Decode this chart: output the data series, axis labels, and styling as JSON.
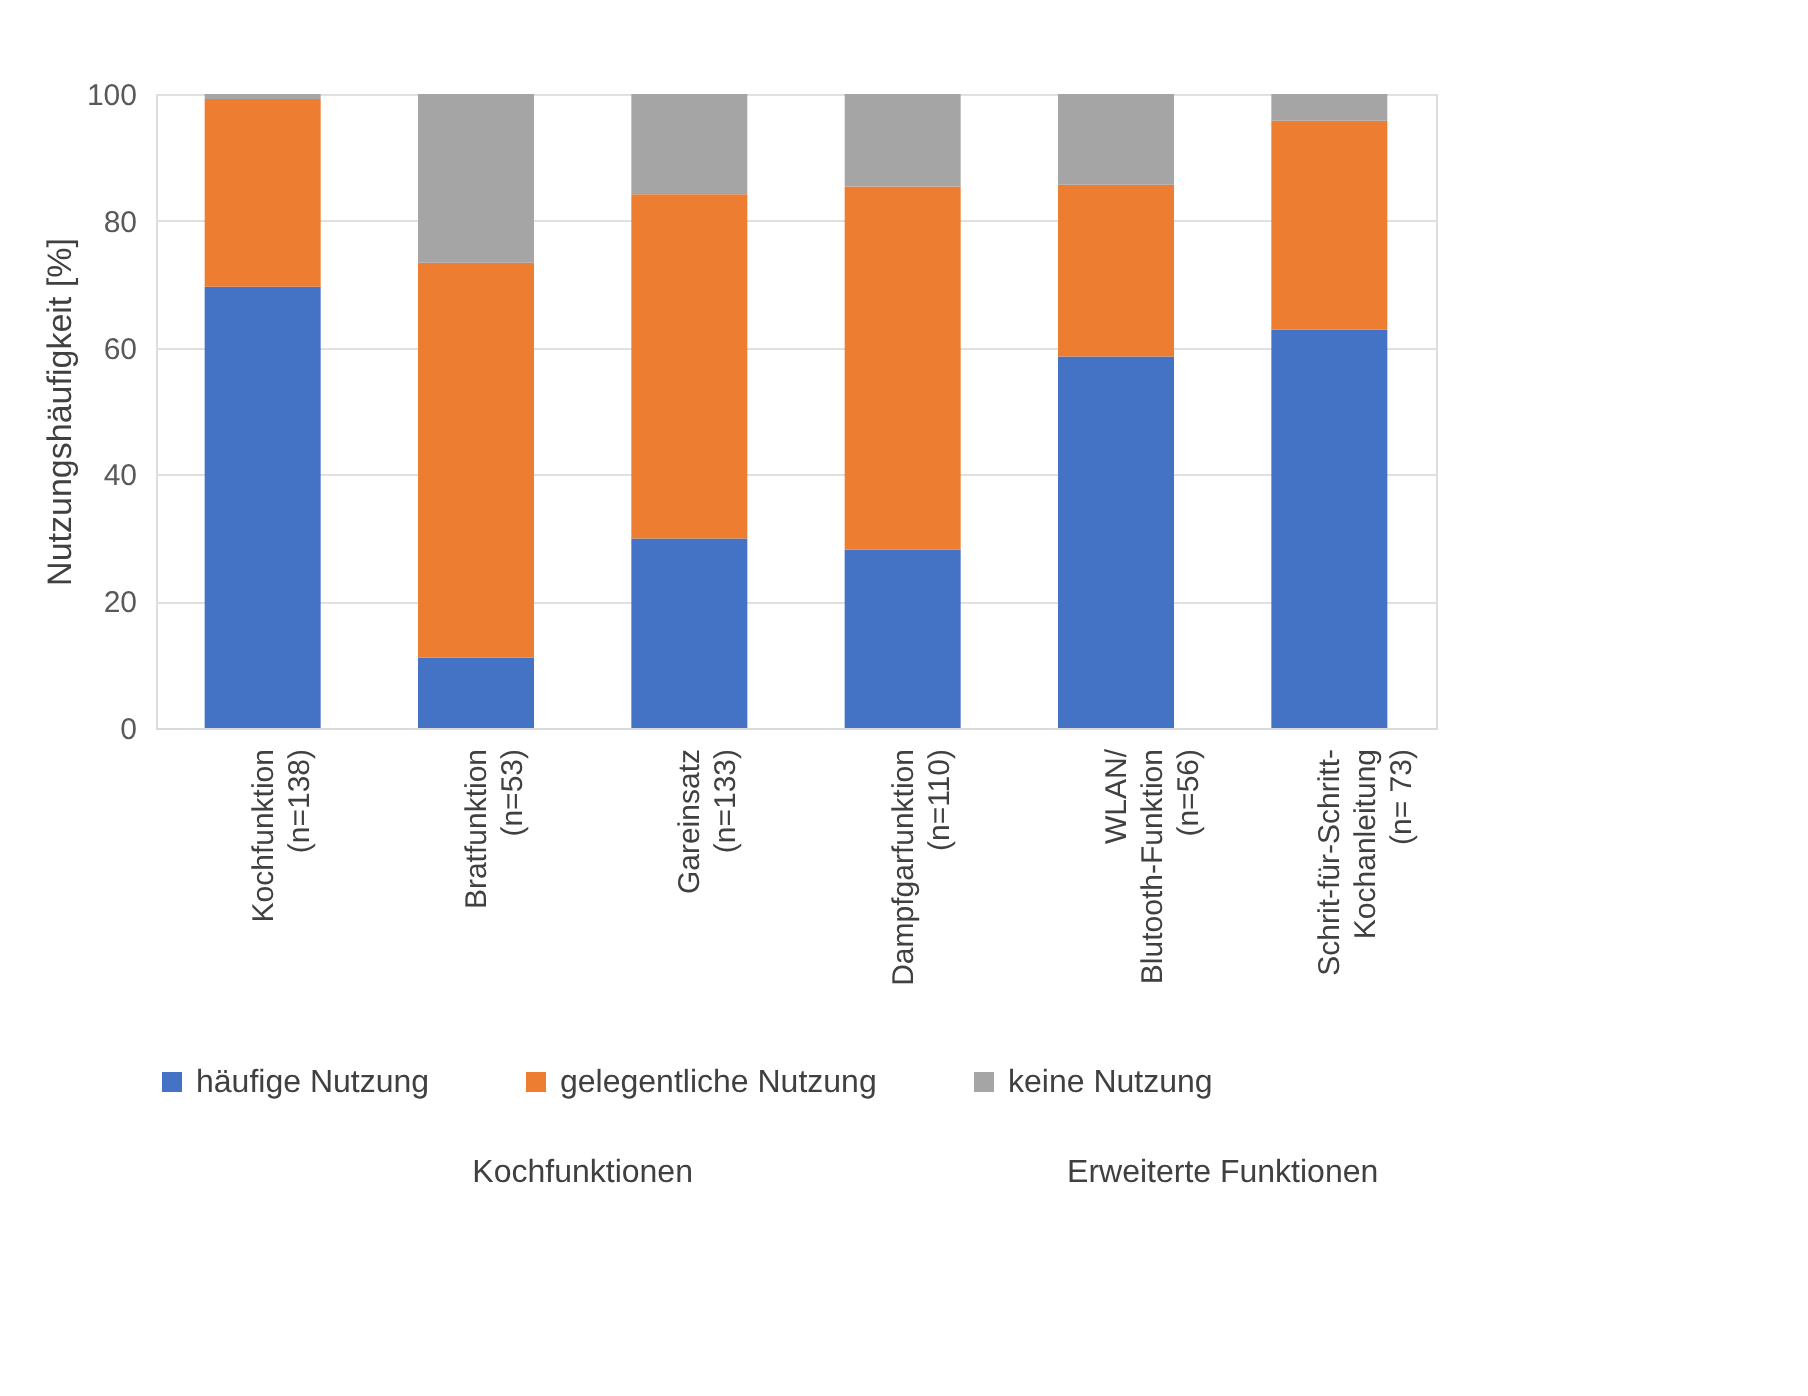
{
  "chart_data": {
    "type": "bar",
    "stacked": true,
    "ylabel": "Nutzungshäufigkeit  [%]",
    "categories": [
      "Kochfunktion\n(n=138)",
      "Bratfunktion\n(n=53)",
      "Gareinsatz\n(n=133)",
      "Dampfgarfunktion\n(n=110)",
      "WLAN/\nBlutooth-Funktion\n(n=56)",
      "Schrit-für-Schritt-\nKochanleitung\n(n= 73)"
    ],
    "series": [
      {
        "name": "häufige Nutzung",
        "color": "#4472c4",
        "values": [
          69.6,
          11.1,
          29.9,
          28.1,
          58.6,
          62.8
        ]
      },
      {
        "name": "gelegentliche Nutzung",
        "color": "#ed7d31",
        "values": [
          29.6,
          62.3,
          54.3,
          57.3,
          27.1,
          33.0
        ]
      },
      {
        "name": "keine Nutzung",
        "color": "#a5a5a5",
        "values": [
          0.8,
          26.6,
          15.8,
          14.6,
          14.3,
          4.2
        ]
      }
    ],
    "ylim": [
      0,
      100
    ],
    "yticks": [
      0,
      20,
      40,
      60,
      80,
      100
    ],
    "grid": "y",
    "legend": "bottom",
    "annotations": [
      "Kochfunktionen",
      "Erweiterte Funktionen"
    ]
  }
}
